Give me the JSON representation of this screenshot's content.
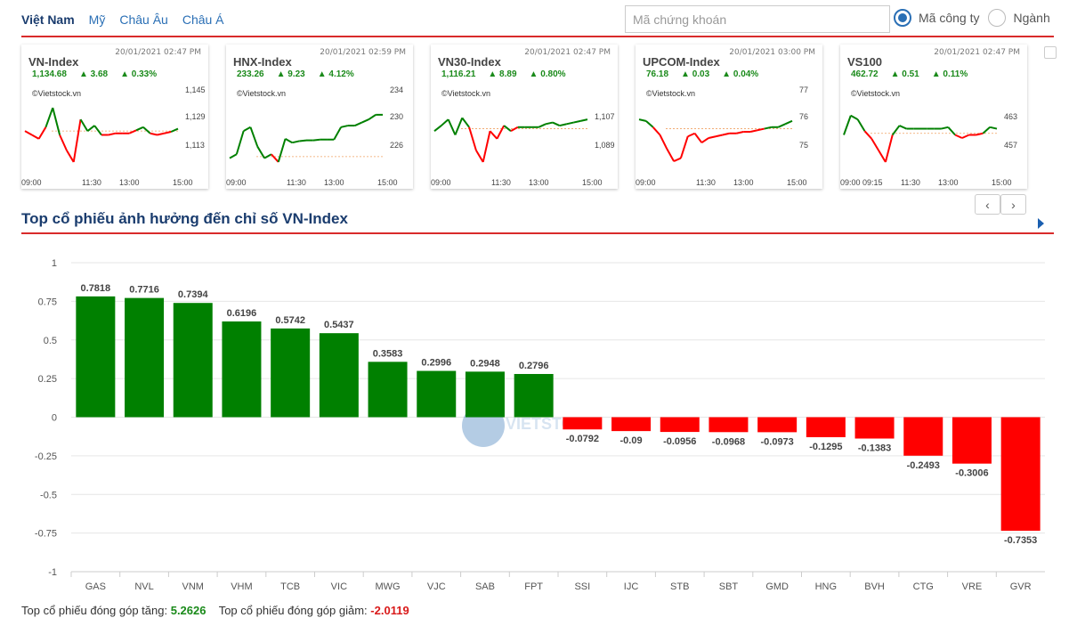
{
  "nav": {
    "items": [
      "Việt Nam",
      "Mỹ",
      "Châu Âu",
      "Châu Á"
    ]
  },
  "search": {
    "placeholder": "Mã chứng khoán"
  },
  "filter": {
    "options": [
      "Mã công ty",
      "Ngành"
    ],
    "selected": "Mã công ty"
  },
  "indices": [
    {
      "name": "VN-Index",
      "time": "20/01/2021 02:47 PM",
      "value": "1,134.68",
      "change": "▲ 3.68",
      "pct": "▲ 0.33%",
      "source": "©Vietstock.vn",
      "yticks": [
        "1,145",
        "1,129",
        "1,113"
      ],
      "xticks": [
        "09:00",
        "11:30",
        "13:00",
        "15:00"
      ]
    },
    {
      "name": "HNX-Index",
      "time": "20/01/2021 02:59 PM",
      "value": "233.26",
      "change": "▲ 9.23",
      "pct": "▲ 4.12%",
      "source": "©Vietstock.vn",
      "yticks": [
        "234",
        "230",
        "226"
      ],
      "xticks": [
        "09:00",
        "11:30",
        "13:00",
        "15:00"
      ]
    },
    {
      "name": "VN30-Index",
      "time": "20/01/2021 02:47 PM",
      "value": "1,116.21",
      "change": "▲ 8.89",
      "pct": "▲ 0.80%",
      "source": "©Vietstock.vn",
      "yticks": [
        "1,107",
        "1,089"
      ],
      "xticks": [
        "09:00",
        "11:30",
        "13:00",
        "15:00"
      ]
    },
    {
      "name": "UPCOM-Index",
      "time": "20/01/2021 03:00 PM",
      "value": "76.18",
      "change": "▲ 0.03",
      "pct": "▲ 0.04%",
      "source": "©Vietstock.vn",
      "yticks": [
        "77",
        "76",
        "75"
      ],
      "xticks": [
        "09:00",
        "11:30",
        "13:00",
        "15:00"
      ]
    },
    {
      "name": "VS100",
      "time": "20/01/2021 02:47 PM",
      "value": "462.72",
      "change": "▲ 0.51",
      "pct": "▲ 0.11%",
      "source": "©Vietstock.vn",
      "yticks": [
        "463",
        "457"
      ],
      "xticks": [
        "09:00 09:15",
        "11:30",
        "13:00",
        "15:00"
      ]
    }
  ],
  "pager": {
    "prev": "‹",
    "next": "›"
  },
  "section_title": "Top cổ phiếu ảnh hưởng đến chỉ số VN-Index",
  "colors": {
    "up": "#008000",
    "down": "#ff0000",
    "accent": "#d92b2b",
    "title": "#1a3c6e"
  },
  "chart_data": {
    "type": "bar",
    "categories": [
      "GAS",
      "NVL",
      "VNM",
      "VHM",
      "TCB",
      "VIC",
      "MWG",
      "VJC",
      "SAB",
      "FPT",
      "SSI",
      "IJC",
      "STB",
      "SBT",
      "GMD",
      "HNG",
      "BVH",
      "CTG",
      "VRE",
      "GVR"
    ],
    "values": [
      0.7818,
      0.7716,
      0.7394,
      0.6196,
      0.5742,
      0.5437,
      0.3583,
      0.2996,
      0.2948,
      0.2796,
      -0.0792,
      -0.09,
      -0.0956,
      -0.0968,
      -0.0973,
      -0.1295,
      -0.1383,
      -0.2493,
      -0.3006,
      -0.7353
    ],
    "data_labels": [
      "0.7818",
      "0.7716",
      "0.7394",
      "0.6196",
      "0.5742",
      "0.5437",
      "0.3583",
      "0.2996",
      "0.2948",
      "0.2796",
      "-0.0792",
      "-0.09",
      "-0.0956",
      "-0.0968",
      "-0.0973",
      "-0.1295",
      "-0.1383",
      "-0.2493",
      "-0.3006",
      "-0.7353"
    ],
    "ylim": [
      -1,
      1
    ],
    "yticks": [
      "1",
      "0.75",
      "0.5",
      "0.25",
      "0",
      "-0.25",
      "-0.5",
      "-0.75",
      "-1"
    ],
    "grid": true,
    "watermark": "VIETSTOCK"
  },
  "summary": {
    "up_label": "Top cổ phiếu đóng góp tăng:",
    "up_value": "5.2626",
    "down_label": "Top cổ phiếu đóng góp giảm:",
    "down_value": "-2.0119"
  }
}
